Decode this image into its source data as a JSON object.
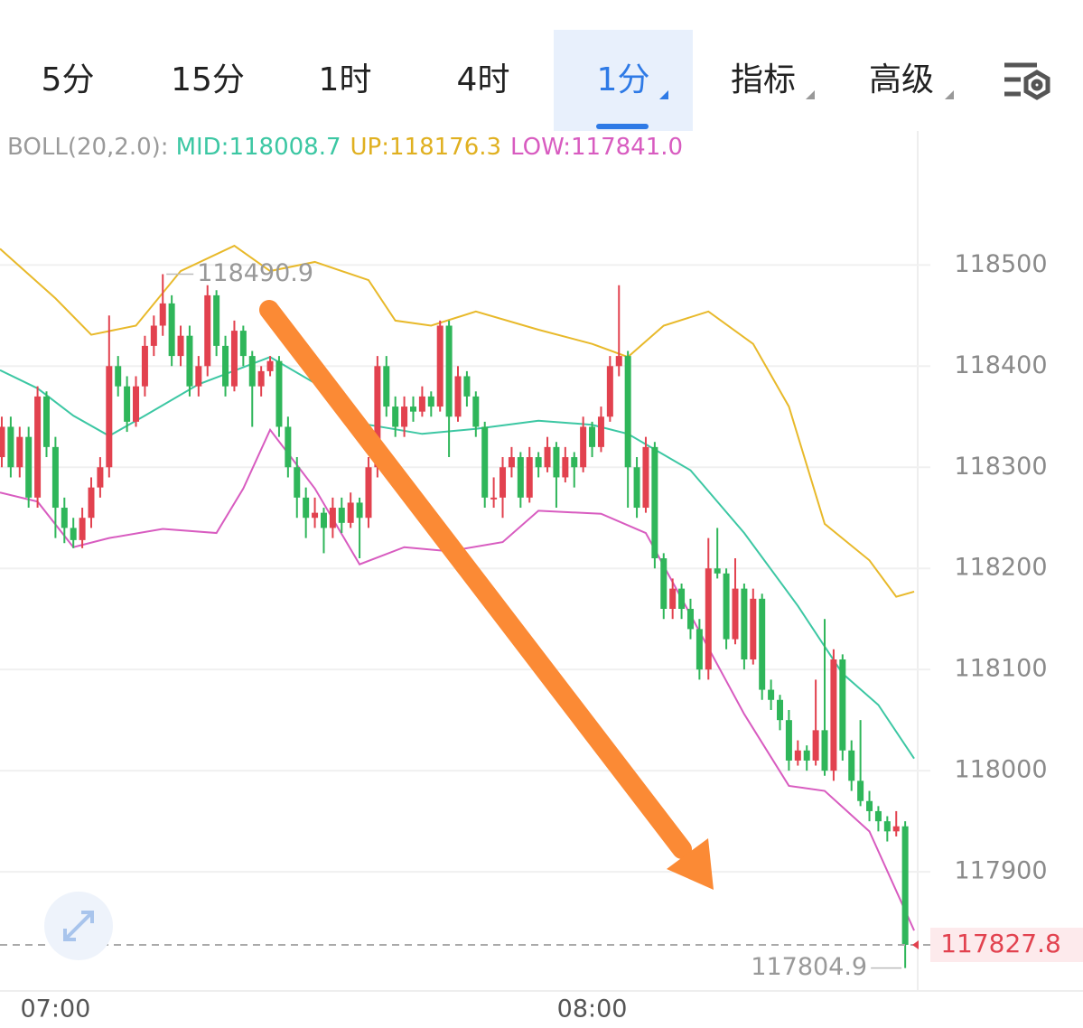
{
  "tabs": [
    "5分",
    "15分",
    "1时",
    "4时",
    "1分",
    "指标",
    "高级"
  ],
  "indicator_legend": [
    "BOLL(20,2.0):",
    "MID:118008.7",
    "UP:118176.3",
    "LOW:117841.0"
  ],
  "chart_data": {
    "type": "candlestick",
    "up_color": "#e2424f",
    "down_color": "#2fb65a",
    "xlim": [
      -6.2,
      96.4
    ],
    "xticks": [
      {
        "value": 0,
        "label": "07:00"
      },
      {
        "value": 60,
        "label": "08:00"
      }
    ],
    "ylim": [
      117784,
      118628
    ],
    "yticks": [
      117900,
      118000,
      118100,
      118200,
      118300,
      118400,
      118500
    ],
    "grid": true,
    "x": [
      -6,
      -5,
      -4,
      -3,
      -2,
      -1,
      0,
      1,
      2,
      3,
      4,
      5,
      6,
      7,
      8,
      9,
      10,
      11,
      12,
      13,
      14,
      15,
      16,
      17,
      18,
      19,
      20,
      21,
      22,
      23,
      24,
      25,
      26,
      27,
      28,
      29,
      30,
      31,
      32,
      33,
      34,
      35,
      36,
      37,
      38,
      39,
      40,
      41,
      42,
      43,
      44,
      45,
      46,
      47,
      48,
      49,
      50,
      51,
      52,
      53,
      54,
      55,
      56,
      57,
      58,
      59,
      60,
      61,
      62,
      63,
      64,
      65,
      66,
      67,
      68,
      69,
      70,
      71,
      72,
      73,
      74,
      75,
      76,
      77,
      78,
      79,
      80,
      81,
      82,
      83,
      84,
      85,
      86,
      87,
      88,
      89,
      90,
      91,
      92,
      93,
      94,
      95
    ],
    "candles": [
      [
        118310,
        118350,
        118300,
        118340
      ],
      [
        118340,
        118350,
        118290,
        118300
      ],
      [
        118300,
        118340,
        118290,
        118330
      ],
      [
        118330,
        118340,
        118260,
        118270
      ],
      [
        118270,
        118380,
        118260,
        118370
      ],
      [
        118370,
        118375,
        118310,
        118320
      ],
      [
        118320,
        118330,
        118230,
        118260
      ],
      [
        118260,
        118270,
        118225,
        118240
      ],
      [
        118240,
        118250,
        118220,
        118228
      ],
      [
        118228,
        118260,
        118220,
        118250
      ],
      [
        118250,
        118290,
        118240,
        118280
      ],
      [
        118280,
        118310,
        118270,
        118300
      ],
      [
        118300,
        118450,
        118290,
        118400
      ],
      [
        118400,
        118410,
        118370,
        118380
      ],
      [
        118380,
        118390,
        118335,
        118345
      ],
      [
        118345,
        118390,
        118340,
        118380
      ],
      [
        118380,
        118430,
        118370,
        118420
      ],
      [
        118420,
        118450,
        118410,
        118440
      ],
      [
        118440,
        118490.9,
        118430,
        118462
      ],
      [
        118462,
        118470,
        118400,
        118410
      ],
      [
        118410,
        118440,
        118400,
        118430
      ],
      [
        118430,
        118440,
        118370,
        118380
      ],
      [
        118380,
        118410,
        118370,
        118400
      ],
      [
        118400,
        118480,
        118390,
        118470
      ],
      [
        118470,
        118475,
        118410,
        118420
      ],
      [
        118420,
        118430,
        118370,
        118380
      ],
      [
        118380,
        118445,
        118375,
        118435
      ],
      [
        118435,
        118440,
        118400,
        118410
      ],
      [
        118410,
        118415,
        118340,
        118380
      ],
      [
        118380,
        118400,
        118370,
        118395
      ],
      [
        118395,
        118410,
        118390,
        118405
      ],
      [
        118405,
        118410,
        118330,
        118340
      ],
      [
        118340,
        118350,
        118290,
        118300
      ],
      [
        118300,
        118310,
        118250,
        118270
      ],
      [
        118270,
        118280,
        118230,
        118250
      ],
      [
        118250,
        118270,
        118240,
        118255
      ],
      [
        118255,
        118260,
        118215,
        118240
      ],
      [
        118240,
        118270,
        118230,
        118260
      ],
      [
        118260,
        118270,
        118235,
        118245
      ],
      [
        118245,
        118275,
        118240,
        118265
      ],
      [
        118265,
        118270,
        118210,
        118250
      ],
      [
        118250,
        118310,
        118240,
        118300
      ],
      [
        118300,
        118410,
        118290,
        118400
      ],
      [
        118400,
        118410,
        118350,
        118360
      ],
      [
        118360,
        118370,
        118330,
        118340
      ],
      [
        118340,
        118370,
        118330,
        118360
      ],
      [
        118360,
        118370,
        118345,
        118355
      ],
      [
        118355,
        118380,
        118350,
        118370
      ],
      [
        118370,
        118375,
        118350,
        118360
      ],
      [
        118360,
        118445,
        118355,
        118440
      ],
      [
        118440,
        118445,
        118310,
        118350
      ],
      [
        118350,
        118400,
        118345,
        118390
      ],
      [
        118390,
        118395,
        118360,
        118370
      ],
      [
        118370,
        118375,
        118330,
        118340
      ],
      [
        118340,
        118345,
        118260,
        118270
      ],
      [
        118270,
        118290,
        118260,
        118270
      ],
      [
        118270,
        118310,
        118250,
        118300
      ],
      [
        118300,
        118320,
        118290,
        118310
      ],
      [
        118310,
        118315,
        118260,
        118270
      ],
      [
        118270,
        118320,
        118265,
        118310
      ],
      [
        118310,
        118315,
        118290,
        118300
      ],
      [
        118300,
        118330,
        118295,
        118320
      ],
      [
        118320,
        118325,
        118260,
        118290
      ],
      [
        118290,
        118320,
        118285,
        118310
      ],
      [
        118310,
        118315,
        118280,
        118300
      ],
      [
        118300,
        118350,
        118295,
        118340
      ],
      [
        118340,
        118345,
        118310,
        118320
      ],
      [
        118320,
        118360,
        118315,
        118350
      ],
      [
        118350,
        118410,
        118345,
        118400
      ],
      [
        118400,
        118480,
        118390,
        118410
      ],
      [
        118410,
        118415,
        118260,
        118300
      ],
      [
        118300,
        118310,
        118250,
        118260
      ],
      [
        118260,
        118330,
        118255,
        118320
      ],
      [
        118320,
        118325,
        118200,
        118210
      ],
      [
        118210,
        118215,
        118150,
        118160
      ],
      [
        118160,
        118190,
        118150,
        118180
      ],
      [
        118180,
        118185,
        118150,
        118160
      ],
      [
        118160,
        118170,
        118130,
        118140
      ],
      [
        118140,
        118150,
        118090,
        118100
      ],
      [
        118100,
        118230,
        118090,
        118200
      ],
      [
        118200,
        118240,
        118190,
        118195
      ],
      [
        118195,
        118200,
        118120,
        118130
      ],
      [
        118130,
        118210,
        118125,
        118180
      ],
      [
        118180,
        118185,
        118100,
        118110
      ],
      [
        118110,
        118180,
        118105,
        118170
      ],
      [
        118170,
        118175,
        118070,
        118080
      ],
      [
        118080,
        118090,
        118060,
        118070
      ],
      [
        118070,
        118075,
        118040,
        118050
      ],
      [
        118050,
        118060,
        118000,
        118010
      ],
      [
        118010,
        118030,
        118005,
        118020
      ],
      [
        118020,
        118025,
        118000,
        118010
      ],
      [
        118010,
        118090,
        118005,
        118040
      ],
      [
        118040,
        118150,
        117995,
        118000
      ],
      [
        118000,
        118120,
        117990,
        118110
      ],
      [
        118110,
        118115,
        118010,
        118020
      ],
      [
        118020,
        118030,
        117980,
        117990
      ],
      [
        117990,
        118050,
        117965,
        117970
      ],
      [
        117970,
        117980,
        117950,
        117960
      ],
      [
        117960,
        117965,
        117940,
        117950
      ],
      [
        117950,
        117955,
        117930,
        117940
      ],
      [
        117940,
        117960,
        117935,
        117945
      ],
      [
        117945,
        117950,
        117804.9,
        117827.8
      ]
    ],
    "bands": [
      {
        "color": "#e8b92a",
        "x": [
          -6.2,
          0,
          4,
          9,
          14,
          20,
          24,
          29,
          35,
          38,
          42,
          47,
          54,
          60,
          64,
          68,
          73,
          78,
          82,
          86,
          91,
          94,
          96
        ],
        "values": [
          118516,
          118467,
          118431,
          118440,
          118494,
          118519,
          118494,
          118503,
          118485,
          118445,
          118440,
          118454,
          118436,
          118422,
          118409,
          118440,
          118454,
          118422,
          118360,
          118244,
          118208,
          118172,
          118177
        ]
      },
      {
        "color": "#3cc7a3",
        "x": [
          -6.2,
          -2,
          2,
          6,
          10,
          16,
          24,
          30,
          35,
          41,
          47,
          54,
          60,
          64,
          71,
          77,
          83,
          88,
          92,
          96
        ],
        "values": [
          118396,
          118378,
          118351,
          118331,
          118351,
          118382,
          118409,
          118378,
          118342,
          118333,
          118338,
          118346,
          118342,
          118333,
          118297,
          118235,
          118163,
          118096,
          118065,
          118012
        ]
      },
      {
        "color": "#d85cc0",
        "x": [
          -6.2,
          -2,
          2,
          6,
          12,
          18,
          21,
          24,
          29,
          34,
          39,
          44,
          50,
          54,
          61,
          66,
          71,
          77,
          82,
          86,
          91,
          96
        ],
        "values": [
          118275,
          118266,
          118221,
          118230,
          118239,
          118235,
          118279,
          118337,
          118279,
          118204,
          118221,
          118217,
          118226,
          118257,
          118254,
          118235,
          118154,
          118056,
          117985,
          117980,
          117940,
          117842
        ]
      }
    ]
  }
}
